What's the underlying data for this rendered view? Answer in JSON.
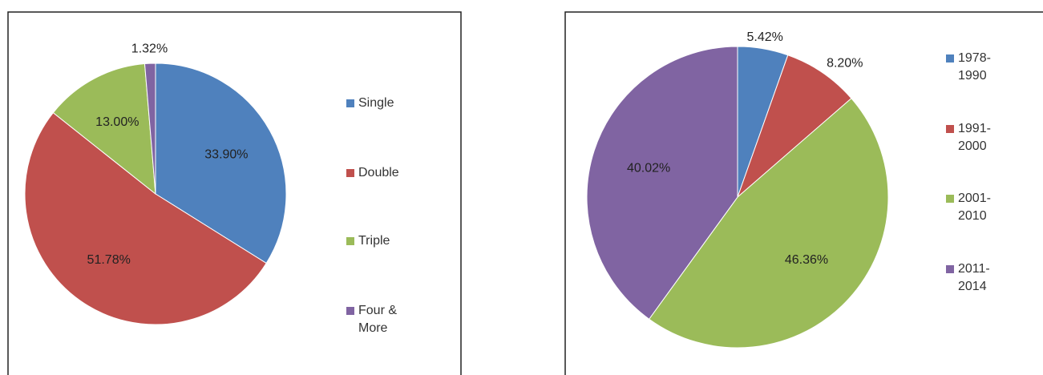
{
  "chart_data": [
    {
      "type": "pie",
      "categories": [
        "Single",
        "Double",
        "Triple",
        "Four & More"
      ],
      "values": [
        33.9,
        51.78,
        13.0,
        1.32
      ],
      "value_labels": [
        "33.90%",
        "51.78%",
        "13.00%",
        "1.32%"
      ],
      "colors": [
        "#4f81bd",
        "#c0504d",
        "#9bbb59",
        "#8064a2"
      ],
      "legend": "right"
    },
    {
      "type": "pie",
      "categories": [
        "1978-1990",
        "1991-2000",
        "2001-2010",
        "2011-2014"
      ],
      "values": [
        5.42,
        8.2,
        46.36,
        40.02
      ],
      "value_labels": [
        "5.42%",
        "8.20%",
        "46.36%",
        "40.02%"
      ],
      "colors": [
        "#4f81bd",
        "#c0504d",
        "#9bbb59",
        "#8064a2"
      ],
      "legend": "right"
    }
  ]
}
